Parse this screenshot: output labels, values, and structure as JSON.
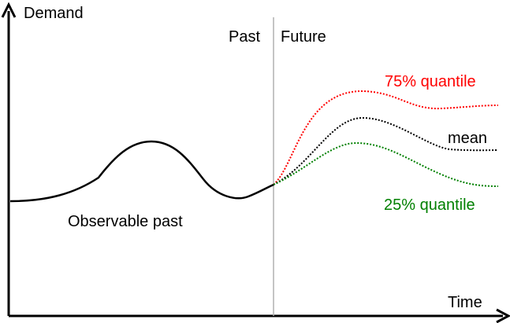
{
  "axes": {
    "y_label": "Demand",
    "x_label": "Time"
  },
  "divider": {
    "past_label": "Past",
    "future_label": "Future"
  },
  "annotations": {
    "observable_past": "Observable past",
    "q75_label": "75% quantile",
    "mean_label": "mean",
    "q25_label": "25% quantile"
  },
  "colors": {
    "axis": "#000000",
    "past_curve": "#000000",
    "divider": "#b0b0b0",
    "q75": "#ff0000",
    "mean": "#000000",
    "q25": "#008000"
  }
}
